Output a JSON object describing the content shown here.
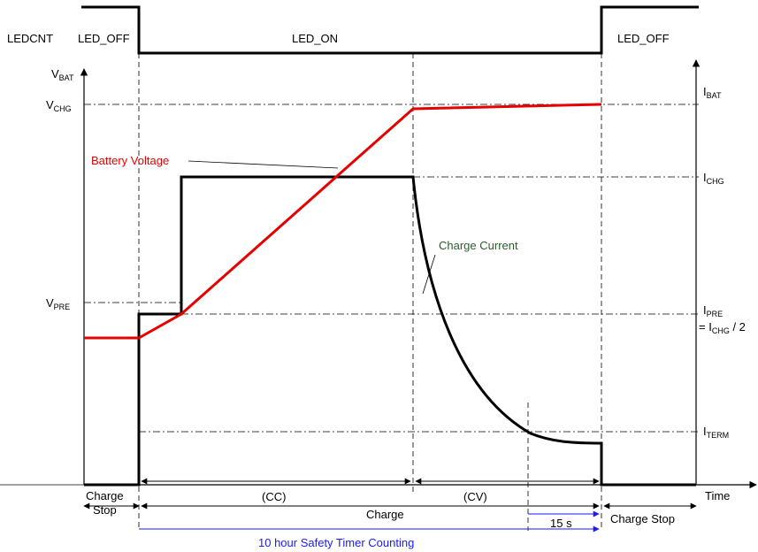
{
  "ledcnt": {
    "signal_label": "LEDCNT",
    "off_left": "LED_OFF",
    "on": "LED_ON",
    "off_right": "LED_OFF"
  },
  "axes": {
    "vbat_main": "V",
    "vbat_sub": "BAT",
    "ibat_main": "I",
    "ibat_sub": "BAT",
    "time": "Time"
  },
  "levels": {
    "vchg_main": "V",
    "vchg_sub": "CHG",
    "vpre_main": "V",
    "vpre_sub": "PRE",
    "ichg_main": "I",
    "ichg_sub": "CHG",
    "ipre_main": "I",
    "ipre_sub": "PRE",
    "ipre_eq_prefix": "= I",
    "ipre_eq_sub": "CHG",
    "ipre_eq_suffix": " / 2",
    "iterm_main": "I",
    "iterm_sub": "TERM"
  },
  "curves": {
    "battery_voltage": "Battery Voltage",
    "charge_current": "Charge Current"
  },
  "phases": {
    "charge_stop_left_line1": "Charge",
    "charge_stop_left_line2": "Stop",
    "cc": "(CC)",
    "cv": "(CV)",
    "charge": "Charge",
    "fifteen_s": "15 s",
    "charge_stop_right": "Charge Stop",
    "safety_timer": "10 hour Safety Timer Counting"
  },
  "colors": {
    "voltage": "#e60000",
    "current": "#000000",
    "timer": "#1a1aff",
    "annotation_text": "#2b5e2b"
  }
}
